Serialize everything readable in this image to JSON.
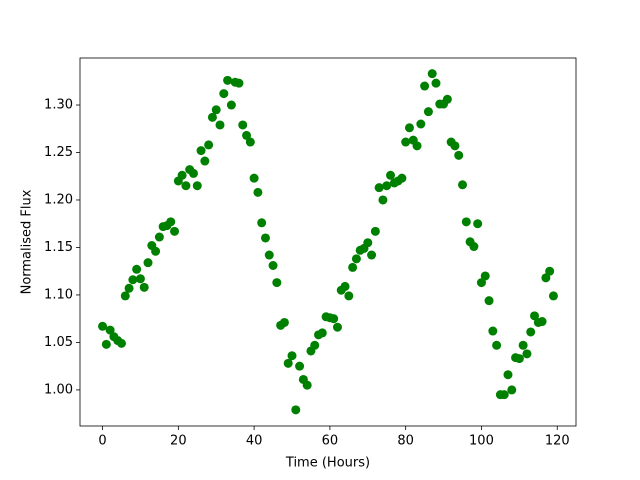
{
  "chart_data": {
    "type": "scatter",
    "x_label": "Time (Hours)",
    "y_label": "Normalised Flux",
    "color": "#008000",
    "xlim": [
      -5.95,
      124.95
    ],
    "ylim": [
      0.962,
      1.3495
    ],
    "xticks": [
      0,
      20,
      40,
      60,
      80,
      100,
      120
    ],
    "yticks": [
      {
        "value": 1.0,
        "label": "1.00"
      },
      1.05,
      {
        "value": 1.1,
        "label": "1.10"
      },
      1.15,
      {
        "value": 1.2,
        "label": "1.20"
      },
      1.25,
      {
        "value": 1.3,
        "label": "1.30"
      }
    ],
    "x": [
      0,
      1,
      2,
      3,
      4,
      5,
      6,
      7,
      8,
      9,
      10,
      11,
      12,
      13,
      14,
      15,
      16,
      17,
      18,
      19,
      20,
      21,
      22,
      23,
      24,
      25,
      26,
      27,
      28,
      29,
      30,
      31,
      32,
      33,
      34,
      35,
      36,
      37,
      38,
      39,
      40,
      41,
      42,
      43,
      44,
      45,
      46,
      47,
      48,
      49,
      50,
      51,
      52,
      53,
      54,
      55,
      56,
      57,
      58,
      59,
      60,
      61,
      62,
      63,
      64,
      65,
      66,
      67,
      68,
      69,
      70,
      71,
      72,
      73,
      74,
      75,
      76,
      77,
      78,
      79,
      80,
      81,
      82,
      83,
      84,
      85,
      86,
      87,
      88,
      89,
      90,
      91,
      92,
      93,
      94,
      95,
      96,
      97,
      98,
      99,
      100,
      101,
      102,
      103,
      104,
      105,
      106,
      107,
      108,
      109,
      110,
      111,
      112,
      113,
      114,
      115,
      116,
      117,
      118,
      119
    ],
    "values": [
      1.067,
      1.048,
      1.063,
      1.056,
      1.052,
      1.049,
      1.099,
      1.107,
      1.116,
      1.127,
      1.117,
      1.108,
      1.134,
      1.152,
      1.146,
      1.161,
      1.172,
      1.173,
      1.177,
      1.167,
      1.22,
      1.226,
      1.215,
      1.232,
      1.228,
      1.215,
      1.252,
      1.241,
      1.258,
      1.287,
      1.295,
      1.279,
      1.312,
      1.326,
      1.3,
      1.324,
      1.323,
      1.279,
      1.268,
      1.261,
      1.223,
      1.208,
      1.176,
      1.16,
      1.142,
      1.131,
      1.113,
      1.068,
      1.071,
      1.028,
      1.036,
      0.979,
      1.025,
      1.011,
      1.005,
      1.041,
      1.047,
      1.058,
      1.06,
      1.077,
      1.076,
      1.075,
      1.066,
      1.105,
      1.109,
      1.099,
      1.129,
      1.138,
      1.147,
      1.149,
      1.155,
      1.142,
      1.167,
      1.213,
      1.2,
      1.215,
      1.226,
      1.218,
      1.22,
      1.223,
      1.261,
      1.276,
      1.263,
      1.257,
      1.28,
      1.32,
      1.293,
      1.333,
      1.323,
      1.301,
      1.301,
      1.306,
      1.261,
      1.257,
      1.247,
      1.216,
      1.177,
      1.156,
      1.151,
      1.175,
      1.113,
      1.12,
      1.094,
      1.062,
      1.047,
      0.995,
      0.995,
      1.016,
      1.0,
      1.034,
      1.033,
      1.047,
      1.038,
      1.061,
      1.078,
      1.071,
      1.072,
      1.118,
      1.125,
      1.099
    ]
  }
}
